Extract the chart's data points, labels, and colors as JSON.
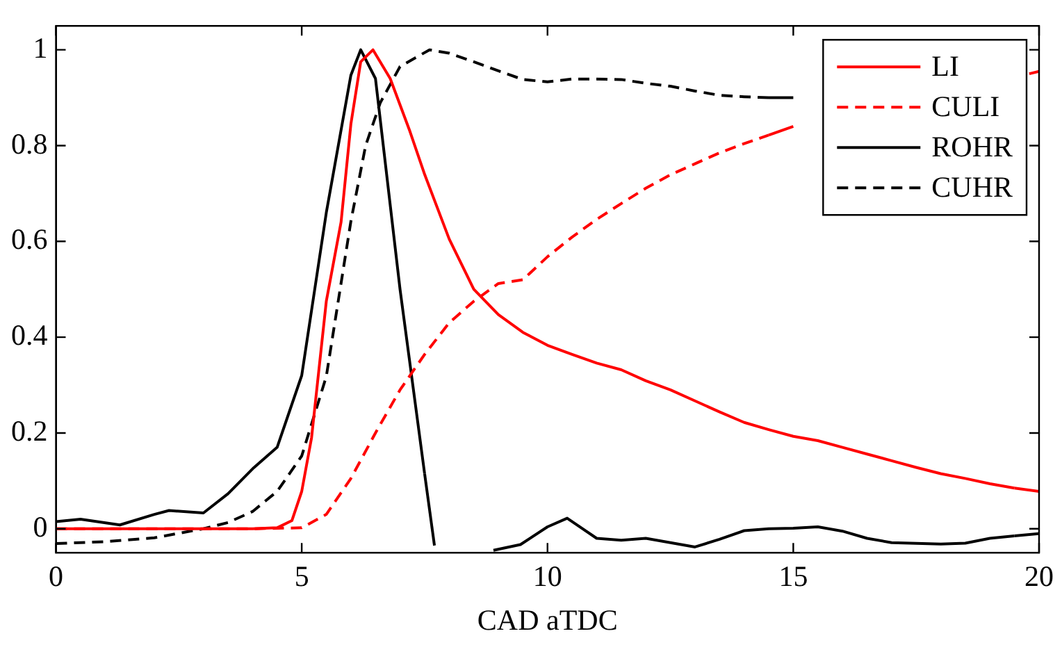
{
  "chart_data": {
    "type": "line",
    "xlabel": "CAD aTDC",
    "xlim": [
      0,
      20
    ],
    "xticks": [
      0,
      5,
      10,
      15,
      20
    ],
    "ylim": [
      -0.05,
      1.05
    ],
    "yticks": [
      0,
      0.2,
      0.4,
      0.6,
      0.8,
      1
    ],
    "legend": "top right",
    "marker": "none",
    "series": [
      {
        "name": "LI",
        "color": "#ff0000",
        "line_style": "solid",
        "x": [
          0,
          1,
          2,
          3,
          4,
          4.5,
          4.8,
          5,
          5.2,
          5.5,
          5.8,
          6,
          6.2,
          6.45,
          6.8,
          7.2,
          7.5,
          8,
          8.5,
          9,
          9.5,
          10,
          10.5,
          11,
          11.5,
          12,
          12.5,
          13,
          13.5,
          14,
          14.5,
          15,
          15.5,
          16,
          16.5,
          17,
          17.5,
          18,
          18.5,
          19,
          19.5,
          20
        ],
        "values": [
          0,
          0,
          0,
          0,
          0,
          0.002,
          0.017,
          0.078,
          0.19,
          0.475,
          0.64,
          0.845,
          0.975,
          1.0,
          0.94,
          0.83,
          0.74,
          0.605,
          0.5,
          0.447,
          0.41,
          0.383,
          0.364,
          0.346,
          0.332,
          0.309,
          0.29,
          0.267,
          0.244,
          0.222,
          0.207,
          0.193,
          0.184,
          0.17,
          0.156,
          0.142,
          0.128,
          0.115,
          0.105,
          0.094,
          0.085,
          0.078
        ]
      },
      {
        "name": "CULI",
        "color": "#ff0000",
        "line_style": "dashed",
        "x": [
          0,
          2,
          4,
          5,
          5.5,
          6,
          6.5,
          7,
          7.5,
          8,
          8.5,
          9,
          9.5,
          10,
          10.5,
          11,
          11.5,
          12,
          12.5,
          13,
          13.5,
          14,
          14.5,
          15,
          15.5,
          19.8,
          20
        ],
        "values": [
          0,
          0,
          0,
          0.002,
          0.03,
          0.105,
          0.2,
          0.29,
          0.364,
          0.43,
          0.475,
          0.512,
          0.52,
          0.568,
          0.609,
          0.646,
          0.679,
          0.711,
          0.739,
          0.762,
          0.785,
          0.804,
          0.822,
          0.84,
          null,
          0.95,
          0.955
        ]
      },
      {
        "name": "ROHR",
        "color": "#000000",
        "line_style": "solid",
        "x": [
          0,
          0.5,
          1.3,
          2,
          2.3,
          3,
          3.5,
          4,
          4.5,
          5,
          5.5,
          6,
          6.2,
          6.5,
          7,
          7.5,
          7.7,
          8.2,
          8.9,
          9.45,
          10,
          10.4,
          11,
          11.5,
          12,
          12.5,
          13,
          13.5,
          14,
          14.5,
          15,
          15.5,
          16,
          16.5,
          17,
          18,
          18.5,
          19,
          19.5,
          20
        ],
        "values": [
          0.015,
          0.02,
          0.008,
          0.03,
          0.038,
          0.033,
          0.073,
          0.125,
          0.17,
          0.32,
          0.66,
          0.947,
          1.0,
          0.94,
          0.5,
          0.115,
          -0.035,
          null,
          -0.045,
          -0.033,
          0.004,
          0.022,
          -0.02,
          -0.024,
          -0.02,
          -0.029,
          -0.038,
          -0.022,
          -0.004,
          0,
          0.001,
          0.004,
          -0.005,
          -0.02,
          -0.029,
          -0.032,
          -0.03,
          -0.02,
          -0.015,
          -0.01
        ]
      },
      {
        "name": "CUHR",
        "color": "#000000",
        "line_style": "dashed",
        "x": [
          0,
          1,
          2,
          3,
          3.5,
          4,
          4.5,
          5,
          5.5,
          6,
          6.3,
          6.6,
          7,
          7.6,
          8,
          8.5,
          9,
          9.5,
          10,
          10.5,
          11,
          11.5,
          12,
          12.5,
          13,
          13.5,
          14,
          14.5,
          15
        ],
        "values": [
          -0.031,
          -0.027,
          -0.019,
          0,
          0.013,
          0.036,
          0.078,
          0.152,
          0.318,
          0.642,
          0.8,
          0.89,
          0.965,
          1.0,
          0.993,
          0.975,
          0.956,
          0.938,
          0.933,
          0.939,
          0.939,
          0.938,
          0.93,
          0.924,
          0.914,
          0.905,
          0.902,
          0.9,
          0.9
        ]
      }
    ]
  }
}
